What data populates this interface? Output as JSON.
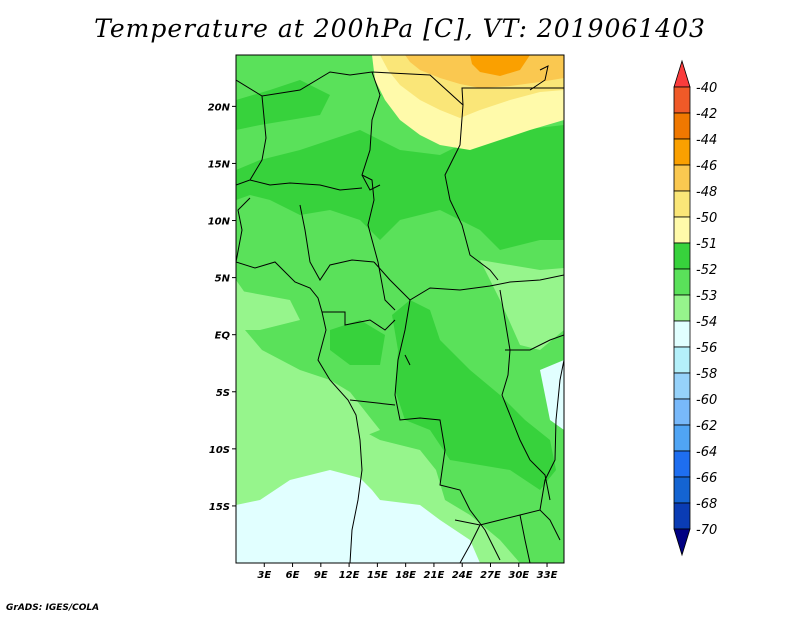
{
  "title": "Temperature at 200hPa [C], VT: 2019061403",
  "credit": "GrADS: IGES/COLA",
  "map": {
    "lat_range": [
      -20,
      24.5
    ],
    "lon_range": [
      0,
      34.8
    ],
    "lat_ticks": [
      "20N",
      "15N",
      "10N",
      "5N",
      "EQ",
      "5S",
      "10S",
      "15S"
    ],
    "lon_ticks": [
      "3E",
      "6E",
      "9E",
      "12E",
      "15E",
      "18E",
      "21E",
      "24E",
      "27E",
      "30E",
      "33E"
    ]
  },
  "colorbar": {
    "labels": [
      "-40",
      "-42",
      "-44",
      "-46",
      "-48",
      "-50",
      "-51",
      "-52",
      "-53",
      "-54",
      "-56",
      "-58",
      "-60",
      "-62",
      "-64",
      "-66",
      "-68",
      "-70"
    ],
    "colors": [
      "#fa3c3c",
      "#f05a28",
      "#f07800",
      "#faa000",
      "#fac850",
      "#fae678",
      "#fffaaa",
      "#37d23c",
      "#5ae15a",
      "#96f58c",
      "#e1ffff",
      "#b4f0fa",
      "#96d2fa",
      "#78b9fa",
      "#50a5f5",
      "#1e6ef0",
      "#1464d2",
      "#0a3cb4",
      "#000082"
    ]
  }
}
